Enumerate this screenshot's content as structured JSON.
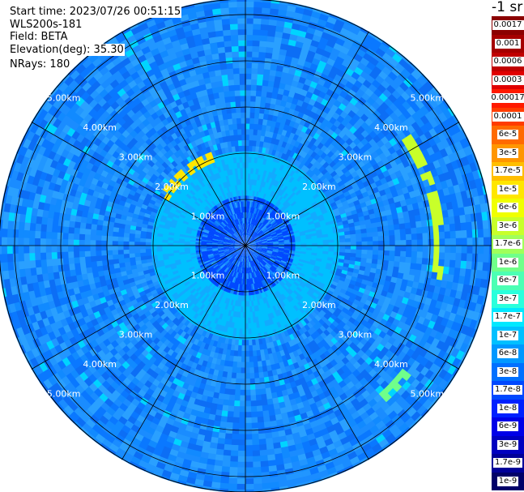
{
  "info": {
    "start_time": "Start time: 2023/07/26 00:51:15",
    "instrument": "WLS200s-181",
    "field": "Field: BETA",
    "elevation": "Elevation(deg): 35.30",
    "nrays": "NRays: 180"
  },
  "colorbar": {
    "unit_label": "-1 sr",
    "ticks": [
      "0.0017",
      "0.001",
      "0.0006",
      "0.0003",
      "0.00017",
      "0.0001",
      "6e-5",
      "3e-5",
      "1.7e-5",
      "1e-5",
      "6e-6",
      "3e-6",
      "1.7e-6",
      "1e-6",
      "6e-7",
      "3e-7",
      "1.7e-7",
      "1e-7",
      "6e-8",
      "3e-8",
      "1.7e-8",
      "1e-8",
      "6e-9",
      "3e-9",
      "1.7e-9",
      "1e-9"
    ],
    "colors": [
      "#8b0000",
      "#a50000",
      "#c00000",
      "#e00000",
      "#ff1a00",
      "#ff3c00",
      "#ff6a00",
      "#ff9600",
      "#ffbe00",
      "#ffe600",
      "#f0ff00",
      "#c8ff2a",
      "#a0ff5a",
      "#70ff8a",
      "#4cffb4",
      "#2affdc",
      "#00e8ff",
      "#00c0ff",
      "#0098ff",
      "#0070ff",
      "#0048ff",
      "#0020ff",
      "#0000e8",
      "#0000c0",
      "#000098",
      "#000068"
    ]
  },
  "range_labels": [
    "1.00km",
    "2.00km",
    "3.00km",
    "4.00km",
    "5.00km"
  ],
  "chart_data": {
    "type": "heatmap",
    "title": "",
    "field": "BETA",
    "units": "sr-1",
    "projection": "PPI polar",
    "elevation_deg": 35.3,
    "nrays": 180,
    "range_rings_km": [
      1.0,
      2.0,
      3.0,
      4.0,
      5.0
    ],
    "max_range_km": 5.0,
    "spokes_deg": [
      0,
      30,
      60,
      90,
      120,
      150,
      180,
      210,
      240,
      270,
      300,
      330
    ],
    "background_level": "3e-8",
    "near_range_level": "1.7e-8",
    "ring_level": "1e-7",
    "features": [
      {
        "description": "bright arc",
        "azimuth_deg": [
          55,
          100
        ],
        "range_km": [
          4.0,
          4.3
        ],
        "level": "3e-6"
      },
      {
        "description": "bright arc",
        "azimuth_deg": [
          128,
          140
        ],
        "range_km": [
          4.3,
          4.6
        ],
        "level": "1e-6"
      },
      {
        "description": "bright patches",
        "azimuth_deg": [
          300,
          340
        ],
        "range_km": [
          1.9,
          2.2
        ],
        "level": "1e-5"
      }
    ]
  }
}
